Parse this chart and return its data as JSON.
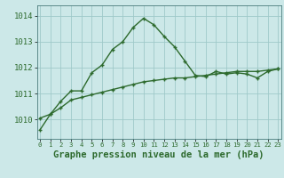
{
  "title": "Graphe pression niveau de la mer (hPa)",
  "hours": [
    0,
    1,
    2,
    3,
    4,
    5,
    6,
    7,
    8,
    9,
    10,
    11,
    12,
    13,
    14,
    15,
    16,
    17,
    18,
    19,
    20,
    21,
    22,
    23
  ],
  "pressure_actual": [
    1009.6,
    1010.2,
    1010.7,
    1011.1,
    1011.1,
    1011.8,
    1012.1,
    1012.7,
    1013.0,
    1013.55,
    1013.9,
    1013.65,
    1013.2,
    1012.8,
    1012.25,
    1011.7,
    1011.65,
    1011.85,
    1011.75,
    1011.8,
    1011.75,
    1011.6,
    1011.85,
    1011.95
  ],
  "pressure_trend": [
    1010.05,
    1010.2,
    1010.45,
    1010.75,
    1010.85,
    1010.95,
    1011.05,
    1011.15,
    1011.25,
    1011.35,
    1011.45,
    1011.5,
    1011.55,
    1011.6,
    1011.6,
    1011.65,
    1011.7,
    1011.75,
    1011.8,
    1011.85,
    1011.85,
    1011.85,
    1011.9,
    1011.95
  ],
  "line_color": "#2d6a2d",
  "bg_color": "#cce8e8",
  "grid_color": "#9fc9c9",
  "ylim": [
    1009.25,
    1014.4
  ],
  "yticks": [
    1010,
    1011,
    1012,
    1013,
    1014
  ],
  "tick_fontsize": 6.5,
  "xtick_fontsize": 5.2,
  "title_fontsize": 7.5
}
